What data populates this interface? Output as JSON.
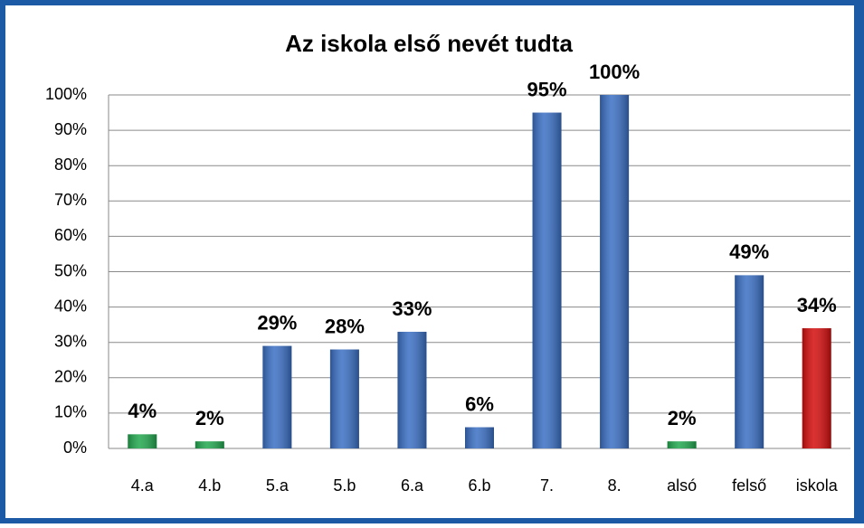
{
  "chart_data": {
    "type": "bar",
    "title": "Az iskola első nevét tudta",
    "categories": [
      "4.a",
      "4.b",
      "5.a",
      "5.b",
      "6.a",
      "6.b",
      "7.",
      "8.",
      "alsó",
      "felső",
      "iskola"
    ],
    "values": [
      4,
      2,
      29,
      28,
      33,
      6,
      95,
      100,
      2,
      49,
      34
    ],
    "value_labels": [
      "4%",
      "2%",
      "29%",
      "28%",
      "33%",
      "6%",
      "95%",
      "100%",
      "2%",
      "49%",
      "34%"
    ],
    "colors": [
      "#22a84f",
      "#22a84f",
      "#3a6fc4",
      "#3a6fc4",
      "#3a6fc4",
      "#3a6fc4",
      "#3a6fc4",
      "#3a6fc4",
      "#22a84f",
      "#3a6fc4",
      "#d40d0d"
    ],
    "ylim": [
      0,
      100
    ],
    "yticks": [
      {
        "value": 0,
        "label": "0%"
      },
      {
        "value": 10,
        "label": "10%"
      },
      {
        "value": 20,
        "label": "20%"
      },
      {
        "value": 30,
        "label": "30%"
      },
      {
        "value": 40,
        "label": "40%"
      },
      {
        "value": 50,
        "label": "50%"
      },
      {
        "value": 60,
        "label": "60%"
      },
      {
        "value": 70,
        "label": "70%"
      },
      {
        "value": 80,
        "label": "80%"
      },
      {
        "value": 90,
        "label": "90%"
      },
      {
        "value": 100,
        "label": "100%"
      }
    ],
    "grid": true
  }
}
